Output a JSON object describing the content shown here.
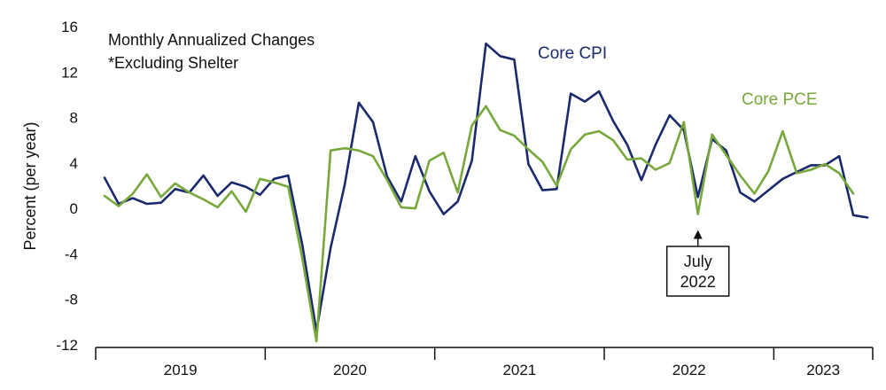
{
  "chart_data": {
    "type": "line",
    "title": "",
    "notes": [
      "Monthly Annualized Changes",
      "*Excluding Shelter"
    ],
    "ylabel": "Percent (per year)",
    "xlabel": "",
    "ylim": [
      -12,
      16
    ],
    "yticks": [
      -12,
      -8,
      -4,
      0,
      4,
      8,
      12,
      16
    ],
    "ytick_labels": [
      "-12",
      "-8",
      "-4",
      "0",
      "4",
      "8",
      "12",
      "16"
    ],
    "x_start": "2019-01",
    "year_labels": [
      "2019",
      "2020",
      "2021",
      "2022",
      "2023"
    ],
    "grid": false,
    "series": [
      {
        "name": "Core CPI",
        "color": "#1a2a6c",
        "values": [
          2.7,
          0.4,
          0.9,
          0.4,
          0.5,
          1.7,
          1.4,
          2.9,
          1.1,
          2.3,
          1.9,
          1.2,
          2.6,
          2.9,
          -3.2,
          -10.8,
          -3.5,
          2.1,
          9.3,
          7.6,
          2.8,
          0.6,
          4.6,
          1.5,
          -0.5,
          0.6,
          4.2,
          14.5,
          13.4,
          13.1,
          3.9,
          1.6,
          1.7,
          10.1,
          9.4,
          10.3,
          7.7,
          5.6,
          2.5,
          5.6,
          8.2,
          6.9,
          1.0,
          6.1,
          5.1,
          1.4,
          0.6,
          1.6,
          2.6,
          3.2,
          3.8,
          3.8,
          4.6,
          -0.6,
          -0.8
        ],
        "label": "Core CPI"
      },
      {
        "name": "Core PCE",
        "color": "#78a83c",
        "values": [
          1.1,
          0.2,
          1.3,
          3.0,
          1.0,
          2.2,
          1.4,
          0.8,
          0.1,
          1.5,
          -0.3,
          2.6,
          2.3,
          1.9,
          -4.4,
          -11.7,
          5.1,
          5.3,
          5.1,
          4.6,
          2.5,
          0.1,
          0.0,
          4.2,
          4.9,
          1.4,
          7.3,
          9.0,
          6.9,
          6.4,
          5.2,
          4.1,
          2.0,
          5.2,
          6.5,
          6.8,
          6.0,
          4.3,
          4.4,
          3.4,
          4.0,
          7.6,
          -0.5,
          6.5,
          4.7,
          2.9,
          1.3,
          3.3,
          6.8,
          3.1,
          3.4,
          3.9,
          3.1,
          1.3
        ],
        "label": "Core PCE"
      }
    ],
    "annotations": [
      {
        "text_lines": [
          "July",
          "2022"
        ],
        "date": "2022-07"
      }
    ]
  }
}
